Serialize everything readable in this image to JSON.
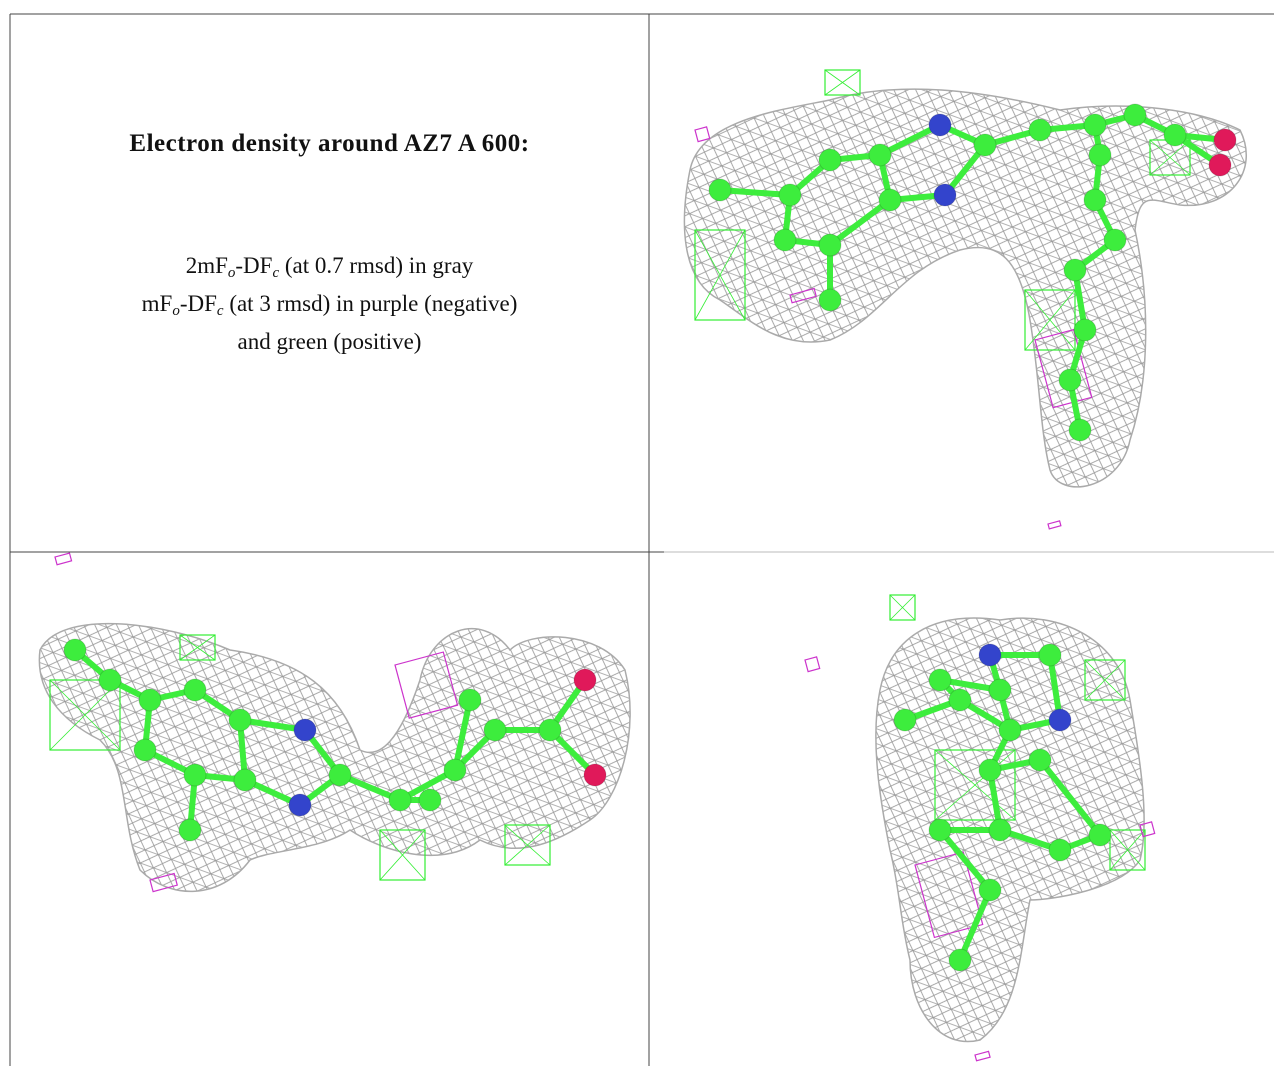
{
  "title": "Electron density around AZ7 A 600:",
  "legend": {
    "lines": [
      [
        "2mF",
        "o",
        "-DF",
        "c",
        " (at 0.7 rmsd) in gray"
      ],
      [
        "mF",
        "o",
        "-DF",
        "c",
        " (at 3 rmsd) in purple (negative)"
      ],
      [
        "and green (positive)"
      ]
    ]
  }
}
